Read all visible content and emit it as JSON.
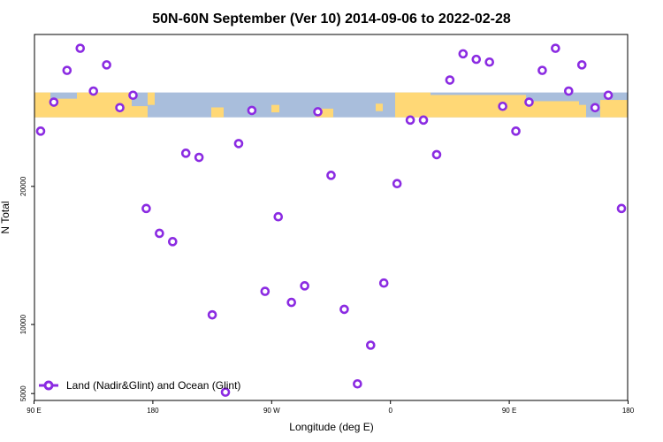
{
  "chart_data": {
    "type": "scatter",
    "title": "50N-60N September (Ver 10)   2014-09-06 to 2022-02-28",
    "xlabel": "Longitude (deg E)",
    "ylabel": "N Total",
    "xlim": [
      90,
      540
    ],
    "ylim": [
      4500,
      31000
    ],
    "x_ticks": [
      {
        "value": 90,
        "label": "90 E"
      },
      {
        "value": 180,
        "label": "180"
      },
      {
        "value": 270,
        "label": "90 W"
      },
      {
        "value": 360,
        "label": "0"
      },
      {
        "value": 450,
        "label": "90 E"
      },
      {
        "value": 540,
        "label": "180"
      }
    ],
    "y_ticks": [
      {
        "value": 5000,
        "label": "5000"
      },
      {
        "value": 10000,
        "label": "10000"
      },
      {
        "value": 20000,
        "label": "20000"
      }
    ],
    "map_band": {
      "lat_range": "50N-60N",
      "y_from": 25000,
      "y_to": 26800,
      "land_color": "#FFD876",
      "ocean_color": "#A9BEDC"
    },
    "series": [
      {
        "name": "Land (Nadir&Glint) and Ocean (Glint)",
        "color": "#8B2BE2",
        "marker": "open-circle",
        "points": [
          {
            "x": 95,
            "y": 24000
          },
          {
            "x": 105,
            "y": 26100
          },
          {
            "x": 115,
            "y": 28400
          },
          {
            "x": 125,
            "y": 30000
          },
          {
            "x": 135,
            "y": 26900
          },
          {
            "x": 145,
            "y": 28800
          },
          {
            "x": 155,
            "y": 25700
          },
          {
            "x": 165,
            "y": 26600
          },
          {
            "x": 175,
            "y": 18400
          },
          {
            "x": 185,
            "y": 16600
          },
          {
            "x": 195,
            "y": 16000
          },
          {
            "x": 205,
            "y": 22400
          },
          {
            "x": 215,
            "y": 22100
          },
          {
            "x": 225,
            "y": 10700
          },
          {
            "x": 235,
            "y": 5100
          },
          {
            "x": 245,
            "y": 23100
          },
          {
            "x": 255,
            "y": 25500
          },
          {
            "x": 265,
            "y": 12400
          },
          {
            "x": 275,
            "y": 17800
          },
          {
            "x": 285,
            "y": 11600
          },
          {
            "x": 295,
            "y": 12800
          },
          {
            "x": 305,
            "y": 25400
          },
          {
            "x": 315,
            "y": 20800
          },
          {
            "x": 325,
            "y": 11100
          },
          {
            "x": 335,
            "y": 5700
          },
          {
            "x": 345,
            "y": 8500
          },
          {
            "x": 355,
            "y": 13000
          },
          {
            "x": 365,
            "y": 20200
          },
          {
            "x": 375,
            "y": 24800
          },
          {
            "x": 385,
            "y": 24800
          },
          {
            "x": 395,
            "y": 22300
          },
          {
            "x": 405,
            "y": 27700
          },
          {
            "x": 415,
            "y": 29600
          },
          {
            "x": 425,
            "y": 29200
          },
          {
            "x": 435,
            "y": 29000
          },
          {
            "x": 445,
            "y": 25800
          },
          {
            "x": 455,
            "y": 24000
          },
          {
            "x": 465,
            "y": 26100
          },
          {
            "x": 475,
            "y": 28400
          },
          {
            "x": 485,
            "y": 30000
          },
          {
            "x": 495,
            "y": 26900
          },
          {
            "x": 505,
            "y": 28800
          },
          {
            "x": 515,
            "y": 25700
          },
          {
            "x": 525,
            "y": 26600
          },
          {
            "x": 535,
            "y": 18400
          }
        ]
      }
    ],
    "legend": {
      "placement": "bottom-left"
    },
    "grid": false
  }
}
